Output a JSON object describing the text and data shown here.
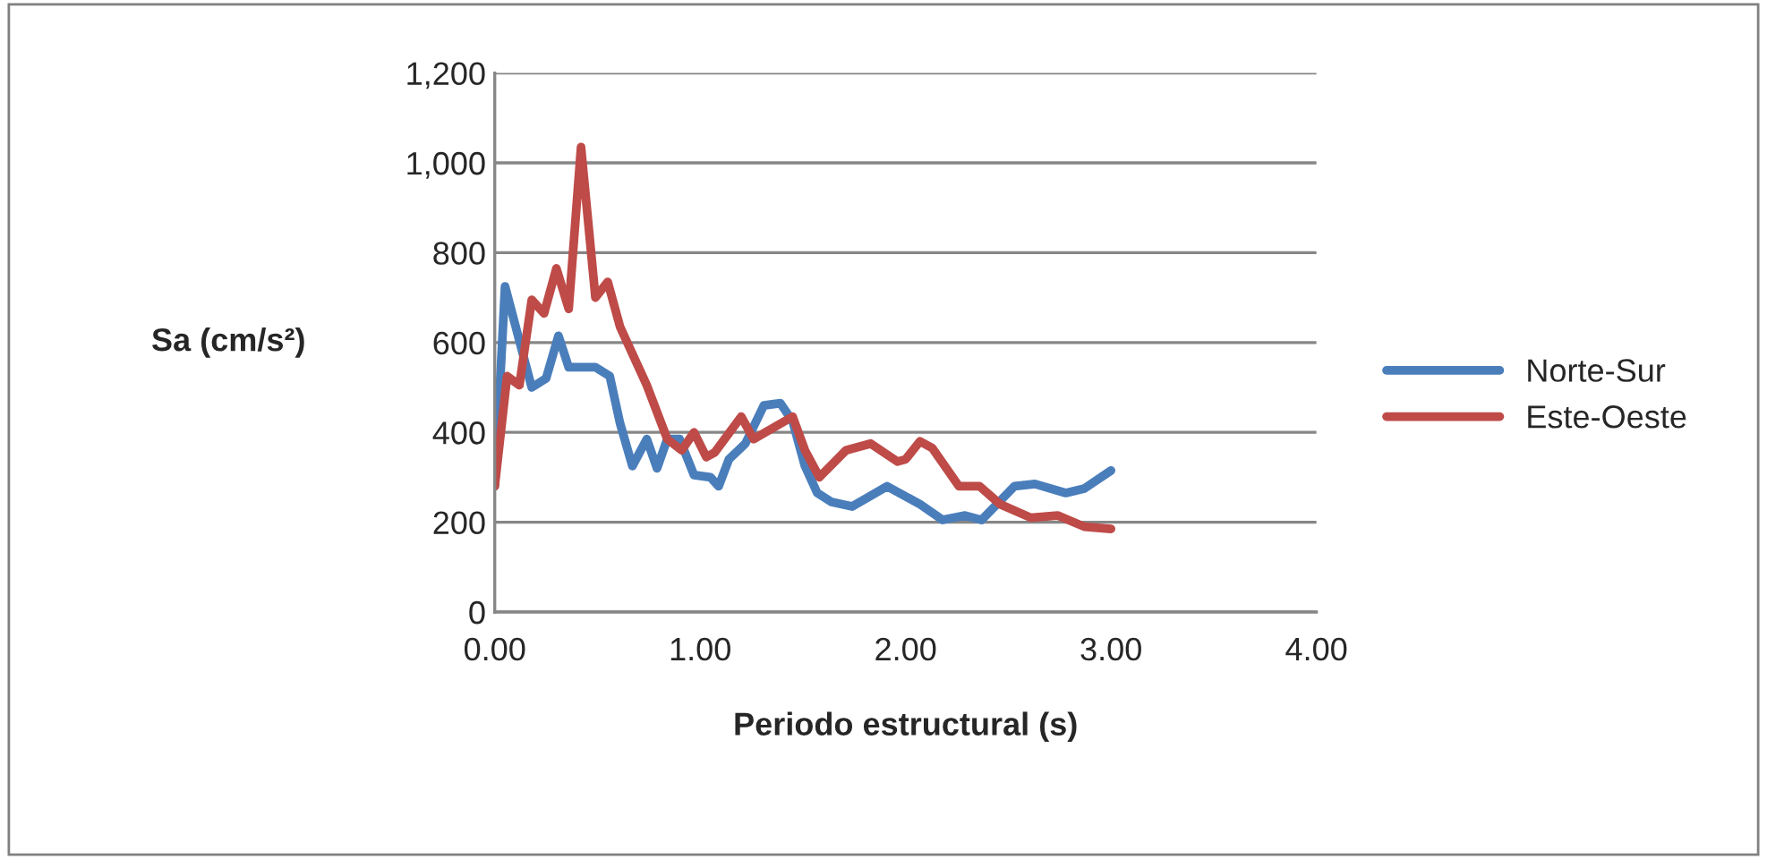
{
  "chart_data": {
    "type": "line",
    "xlabel": "Periodo estructural (s)",
    "ylabel": "Sa (cm/s²)",
    "xlim": [
      0,
      4
    ],
    "xticks": [
      {
        "value": 0,
        "label": "0.00"
      },
      {
        "value": 1,
        "label": "1.00"
      },
      {
        "value": 2,
        "label": "2.00"
      },
      {
        "value": 3,
        "label": "3.00"
      },
      {
        "value": 4,
        "label": "4.00"
      }
    ],
    "ylim": [
      0,
      1200
    ],
    "yticks": [
      0,
      200,
      400,
      600,
      800,
      {
        "value": 1000,
        "label": "1,000"
      },
      {
        "value": 1200,
        "label": "1,200"
      }
    ],
    "grid": "y",
    "legend": "right",
    "marker": "none",
    "line_style": "solid",
    "series": [
      {
        "name": "Norte-Sur",
        "color": "#4a7ebb",
        "x": [
          0,
          0.05,
          0.18,
          0.25,
          0.31,
          0.36,
          0.49,
          0.56,
          0.61,
          0.67,
          0.74,
          0.79,
          0.84,
          0.9,
          0.97,
          1.05,
          1.09,
          1.14,
          1.22,
          1.31,
          1.39,
          1.45,
          1.51,
          1.57,
          1.64,
          1.74,
          1.91,
          2.07,
          2.18,
          2.29,
          2.37,
          2.53,
          2.63,
          2.78,
          2.87,
          3.0
        ],
        "values": [
          280,
          725,
          500,
          520,
          615,
          545,
          545,
          525,
          420,
          325,
          385,
          320,
          385,
          385,
          305,
          300,
          280,
          340,
          375,
          460,
          465,
          425,
          325,
          265,
          245,
          235,
          280,
          240,
          205,
          215,
          205,
          280,
          285,
          265,
          275,
          315
        ]
      },
      {
        "name": "Este-Oeste",
        "color": "#be4b48",
        "x": [
          0,
          0.06,
          0.12,
          0.18,
          0.24,
          0.3,
          0.36,
          0.42,
          0.49,
          0.55,
          0.61,
          0.74,
          0.84,
          0.91,
          0.97,
          1.03,
          1.07,
          1.2,
          1.26,
          1.45,
          1.51,
          1.58,
          1.71,
          1.83,
          1.96,
          2.0,
          2.07,
          2.13,
          2.26,
          2.36,
          2.46,
          2.61,
          2.74,
          2.87,
          3.0
        ],
        "values": [
          280,
          525,
          505,
          695,
          665,
          765,
          675,
          1035,
          700,
          735,
          635,
          505,
          385,
          360,
          400,
          345,
          355,
          435,
          385,
          435,
          360,
          300,
          360,
          375,
          335,
          340,
          380,
          365,
          280,
          280,
          240,
          210,
          215,
          190,
          185
        ]
      }
    ]
  }
}
